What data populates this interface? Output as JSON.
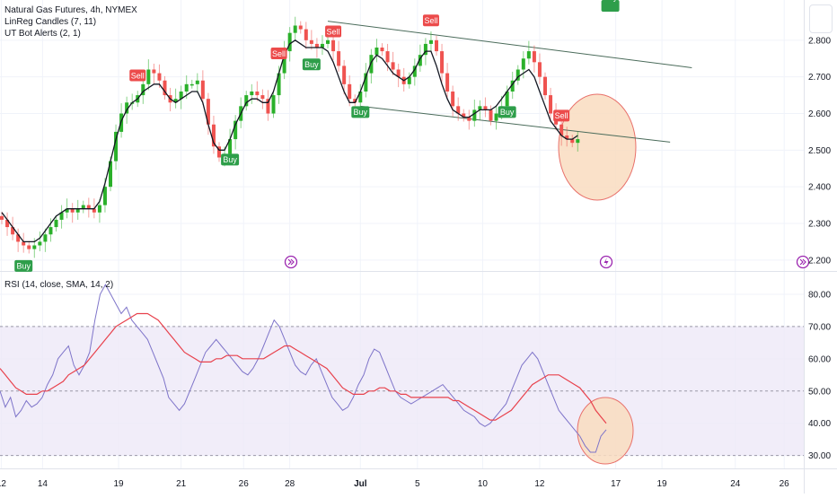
{
  "legend": {
    "symbol": "Natural Gas Futures, 4h, NYMEX",
    "indicator1": "LinReg Candles (7, 11)",
    "indicator2": "UT Bot Alerts (2, 1)",
    "rsi": "RSI (14, close, SMA, 14, 2)"
  },
  "colors": {
    "up": "#26a69a",
    "up_bright": "#2ab02a",
    "down": "#ef5350",
    "linreg": "#131722",
    "channel": "#4a6b5a",
    "rsi": "#7e74c9",
    "rsi_ma": "#e8414c",
    "band_fill": "#ede8f7",
    "highlight_fill": "#f9dcbf",
    "highlight_stroke": "#e8706a",
    "buy_label": "#2e9e4a",
    "sell_label": "#ec4b4b",
    "event_icon": "#9c27b0"
  },
  "icons": [
    "event-forward-icon",
    "event-lightning-icon",
    "event-forward-icon"
  ],
  "chart_data": [
    {
      "type": "candlestick",
      "title": "Natural Gas Futures, 4h, NYMEX",
      "x_ticks": [
        "12",
        "14",
        "19",
        "21",
        "26",
        "28",
        "Jul",
        "5",
        "10",
        "12",
        "17",
        "19",
        "24",
        "26"
      ],
      "y_ticks": [
        "2.800",
        "2.700",
        "2.600",
        "2.500",
        "2.400",
        "2.300",
        "2.200"
      ],
      "ylim": [
        2.18,
        2.9
      ],
      "close": [
        2.31,
        2.29,
        2.27,
        2.25,
        2.24,
        2.23,
        2.24,
        2.25,
        2.27,
        2.29,
        2.31,
        2.33,
        2.34,
        2.33,
        2.34,
        2.35,
        2.34,
        2.33,
        2.35,
        2.4,
        2.47,
        2.55,
        2.6,
        2.63,
        2.63,
        2.65,
        2.68,
        2.72,
        2.71,
        2.69,
        2.65,
        2.63,
        2.64,
        2.66,
        2.68,
        2.68,
        2.69,
        2.64,
        2.57,
        2.51,
        2.48,
        2.49,
        2.53,
        2.58,
        2.62,
        2.65,
        2.66,
        2.65,
        2.64,
        2.6,
        2.65,
        2.71,
        2.77,
        2.82,
        2.84,
        2.83,
        2.8,
        2.79,
        2.78,
        2.79,
        2.8,
        2.77,
        2.73,
        2.68,
        2.64,
        2.63,
        2.66,
        2.71,
        2.76,
        2.78,
        2.77,
        2.74,
        2.72,
        2.7,
        2.68,
        2.7,
        2.73,
        2.76,
        2.79,
        2.8,
        2.77,
        2.71,
        2.66,
        2.62,
        2.6,
        2.59,
        2.58,
        2.61,
        2.62,
        2.61,
        2.58,
        2.6,
        2.62,
        2.66,
        2.69,
        2.72,
        2.75,
        2.77,
        2.74,
        2.7,
        2.65,
        2.6,
        2.57,
        2.54,
        2.53,
        2.52,
        2.53
      ],
      "linreg": [
        2.33,
        2.31,
        2.29,
        2.27,
        2.25,
        2.25,
        2.25,
        2.26,
        2.28,
        2.3,
        2.32,
        2.33,
        2.34,
        2.34,
        2.34,
        2.34,
        2.34,
        2.34,
        2.36,
        2.41,
        2.47,
        2.53,
        2.58,
        2.61,
        2.63,
        2.64,
        2.66,
        2.67,
        2.68,
        2.68,
        2.66,
        2.64,
        2.63,
        2.64,
        2.65,
        2.66,
        2.66,
        2.63,
        2.57,
        2.52,
        2.5,
        2.5,
        2.53,
        2.57,
        2.6,
        2.63,
        2.64,
        2.64,
        2.63,
        2.63,
        2.66,
        2.71,
        2.76,
        2.79,
        2.8,
        2.79,
        2.78,
        2.78,
        2.78,
        2.78,
        2.77,
        2.74,
        2.7,
        2.66,
        2.63,
        2.63,
        2.66,
        2.7,
        2.74,
        2.76,
        2.75,
        2.73,
        2.71,
        2.7,
        2.69,
        2.7,
        2.72,
        2.75,
        2.77,
        2.77,
        2.73,
        2.68,
        2.64,
        2.61,
        2.6,
        2.59,
        2.59,
        2.6,
        2.61,
        2.61,
        2.61,
        2.62,
        2.64,
        2.66,
        2.68,
        2.7,
        2.71,
        2.72,
        2.7,
        2.66,
        2.62,
        2.58,
        2.56,
        2.54,
        2.53,
        2.53,
        2.54
      ],
      "signals": [
        {
          "label": "Buy",
          "index": 4
        },
        {
          "label": "Sell",
          "index": 25
        },
        {
          "label": "Buy",
          "index": 42
        },
        {
          "label": "Sell",
          "index": 51
        },
        {
          "label": "Buy",
          "index": 57
        },
        {
          "label": "Sell",
          "index": 61
        },
        {
          "label": "Buy",
          "index": 66
        },
        {
          "label": "Sell",
          "index": 79
        },
        {
          "label": "Buy",
          "index": 93
        },
        {
          "label": "Sell",
          "index": 103
        },
        {
          "label": "Buy",
          "index": 112
        }
      ],
      "channel": {
        "upper": [
          [
            60,
            2.852
          ],
          [
            127,
            2.725
          ]
        ],
        "lower": [
          [
            66,
            2.62
          ],
          [
            123,
            2.522
          ]
        ]
      }
    },
    {
      "type": "line",
      "title": "RSI (14, close, SMA, 14, 2)",
      "y_ticks": [
        "80.00",
        "70.00",
        "60.00",
        "50.00",
        "40.00",
        "30.00"
      ],
      "ylim": [
        26,
        85
      ],
      "band": [
        30,
        70
      ],
      "midline": 50,
      "series": [
        {
          "values": [
            50,
            45,
            48,
            42,
            44,
            47,
            45,
            46,
            48,
            52,
            55,
            60,
            62,
            64,
            58,
            55,
            58,
            62,
            72,
            80,
            83,
            80,
            77,
            74,
            76,
            72,
            70,
            68,
            66,
            62,
            58,
            54,
            48,
            46,
            44,
            46,
            50,
            54,
            58,
            62,
            64,
            66,
            64,
            62,
            60,
            58,
            56,
            55,
            57,
            60,
            64,
            68,
            72,
            70,
            66,
            62,
            58,
            56,
            55,
            58,
            60,
            56,
            52,
            48,
            46,
            44,
            45,
            48,
            52,
            55,
            60,
            63,
            62,
            58,
            54,
            50,
            48,
            47,
            46,
            47,
            48,
            49,
            50,
            51,
            52,
            50,
            48,
            46,
            44,
            43,
            42,
            40,
            39,
            40,
            42,
            44,
            46,
            50,
            54,
            58,
            60,
            62,
            60,
            56,
            52,
            48,
            44,
            42,
            40,
            38,
            36,
            33,
            31,
            31,
            36,
            38
          ]
        },
        {
          "values": [
            57,
            55,
            53,
            51,
            50,
            49,
            49,
            49,
            50,
            50,
            51,
            52,
            53,
            55,
            56,
            57,
            58,
            60,
            62,
            64,
            66,
            68,
            70,
            71,
            72,
            73,
            74,
            74,
            74,
            73,
            72,
            70,
            68,
            66,
            64,
            62,
            61,
            60,
            59,
            59,
            59,
            60,
            60,
            61,
            61,
            61,
            60,
            60,
            60,
            60,
            60,
            61,
            62,
            63,
            64,
            64,
            63,
            62,
            61,
            60,
            59,
            58,
            57,
            55,
            53,
            51,
            50,
            49,
            49,
            49,
            50,
            50,
            51,
            51,
            50,
            50,
            49,
            49,
            48,
            48,
            48,
            48,
            48,
            48,
            48,
            48,
            47,
            47,
            46,
            45,
            44,
            43,
            42,
            41,
            41,
            42,
            43,
            44,
            46,
            48,
            50,
            52,
            53,
            54,
            55,
            55,
            55,
            54,
            53,
            52,
            51,
            49,
            47,
            44,
            42,
            40
          ]
        }
      ]
    }
  ]
}
